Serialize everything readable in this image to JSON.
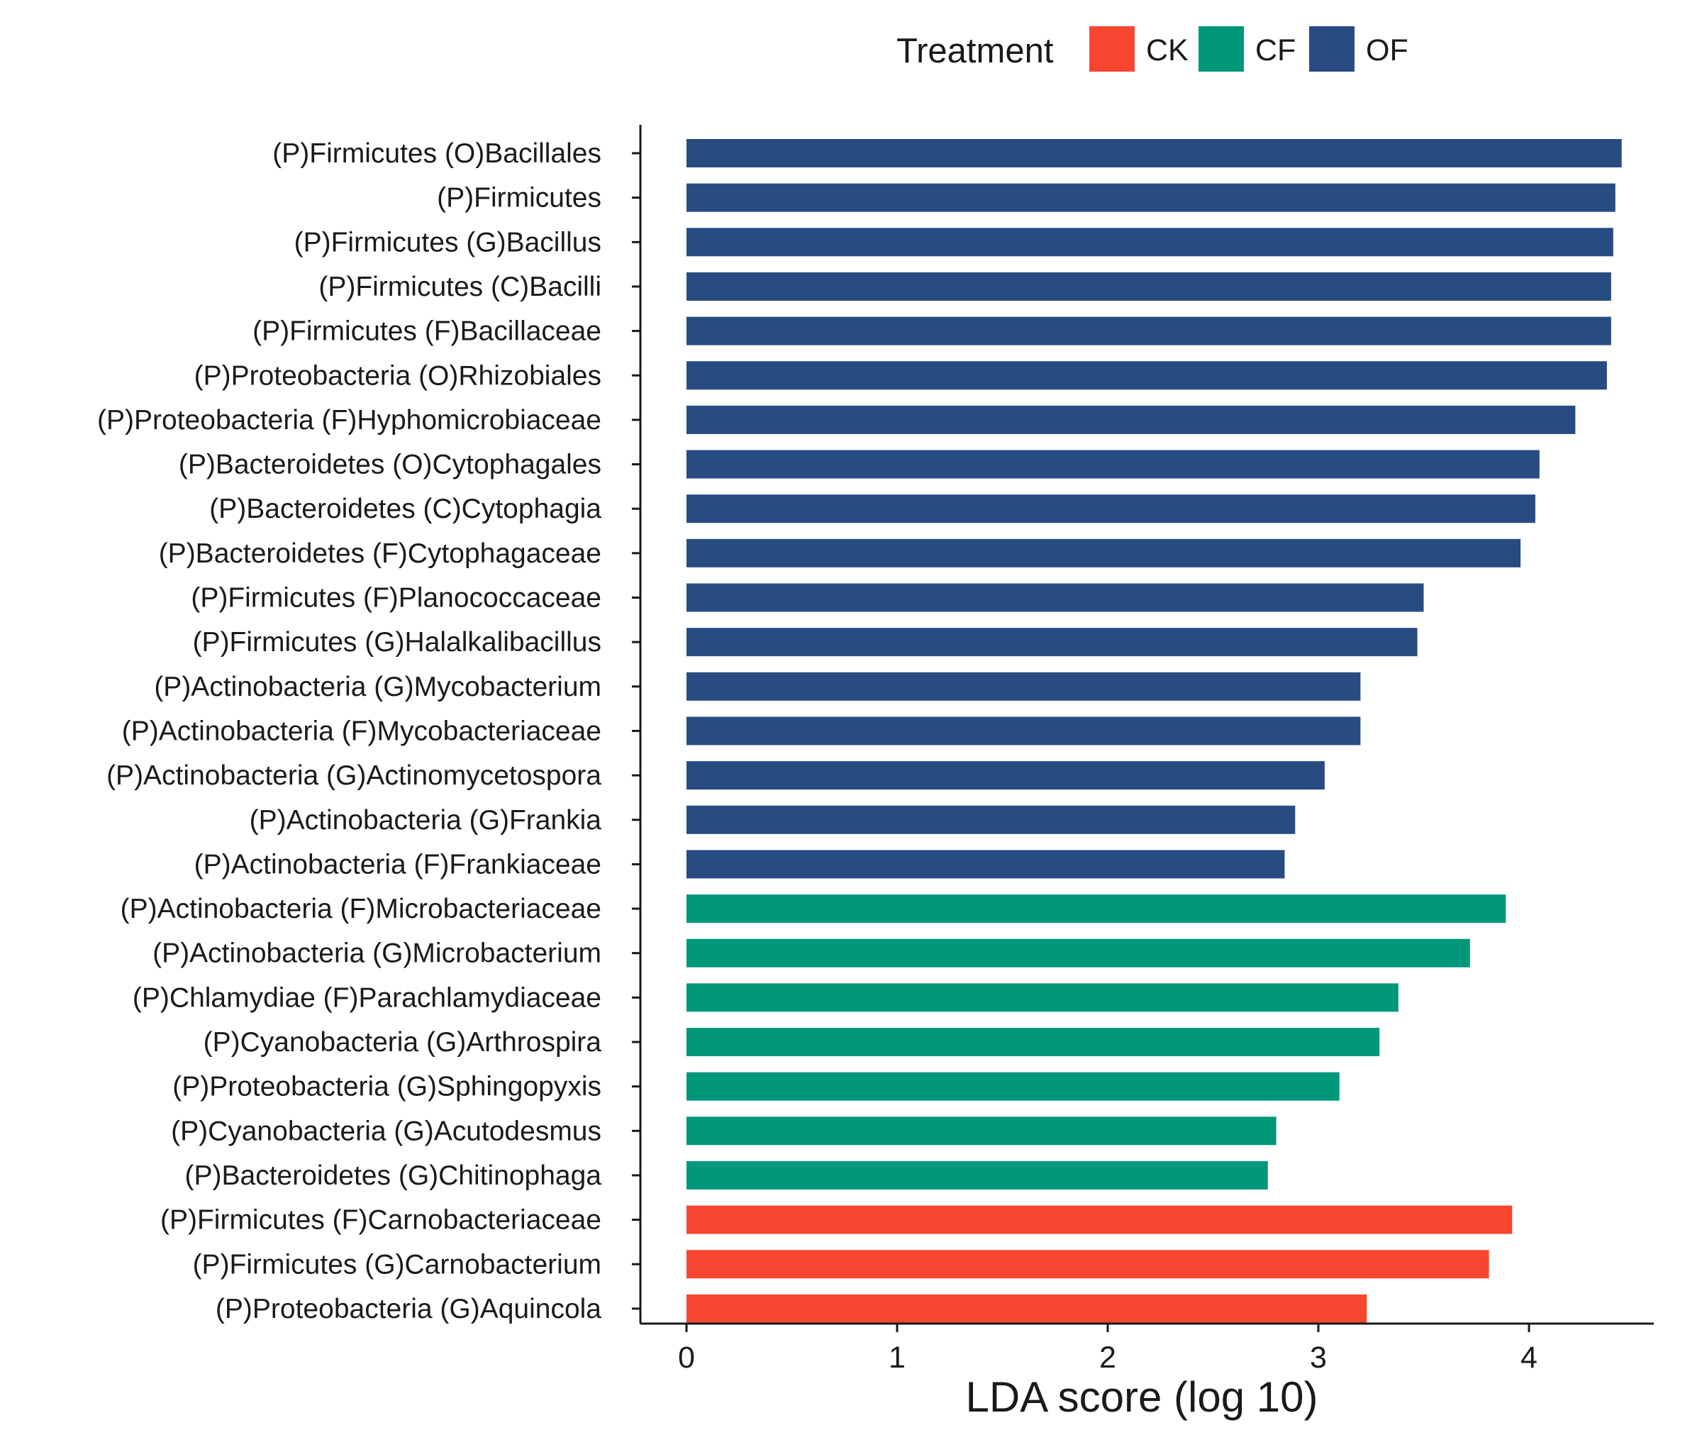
{
  "chart_data": {
    "type": "bar",
    "orientation": "horizontal",
    "xlabel": "LDA score (log 10)",
    "ylabel": "",
    "xlim": [
      0,
      4.6
    ],
    "xticks": [
      0,
      1,
      2,
      3,
      4
    ],
    "legend": {
      "title": "Treatment",
      "position": "top",
      "entries": [
        {
          "name": "CK",
          "color": "#F8452F"
        },
        {
          "name": "CF",
          "color": "#00977A"
        },
        {
          "name": "OF",
          "color": "#284B82"
        }
      ]
    },
    "categories": [
      "(P)Firmicutes (O)Bacillales",
      "(P)Firmicutes",
      "(P)Firmicutes (G)Bacillus",
      "(P)Firmicutes (C)Bacilli",
      "(P)Firmicutes (F)Bacillaceae",
      "(P)Proteobacteria (O)Rhizobiales",
      "(P)Proteobacteria (F)Hyphomicrobiaceae",
      "(P)Bacteroidetes (O)Cytophagales",
      "(P)Bacteroidetes (C)Cytophagia",
      "(P)Bacteroidetes (F)Cytophagaceae",
      "(P)Firmicutes (F)Planococcaceae",
      "(P)Firmicutes (G)Halalkalibacillus",
      "(P)Actinobacteria (G)Mycobacterium",
      "(P)Actinobacteria (F)Mycobacteriaceae",
      "(P)Actinobacteria (G)Actinomycetospora",
      "(P)Actinobacteria (G)Frankia",
      "(P)Actinobacteria (F)Frankiaceae",
      "(P)Actinobacteria (F)Microbacteriaceae",
      "(P)Actinobacteria (G)Microbacterium",
      "(P)Chlamydiae (F)Parachlamydiaceae",
      "(P)Cyanobacteria (G)Arthrospira",
      "(P)Proteobacteria (G)Sphingopyxis",
      "(P)Cyanobacteria (G)Acutodesmus",
      "(P)Bacteroidetes (G)Chitinophaga",
      "(P)Firmicutes (F)Carnobacteriaceae",
      "(P)Firmicutes (G)Carnobacterium",
      "(P)Proteobacteria (G)Aquincola"
    ],
    "values": [
      4.44,
      4.41,
      4.4,
      4.39,
      4.39,
      4.37,
      4.22,
      4.05,
      4.03,
      3.96,
      3.5,
      3.47,
      3.2,
      3.2,
      3.03,
      2.89,
      2.84,
      3.89,
      3.72,
      3.38,
      3.29,
      3.1,
      2.8,
      2.76,
      3.92,
      3.81,
      3.23
    ],
    "groups": [
      "OF",
      "OF",
      "OF",
      "OF",
      "OF",
      "OF",
      "OF",
      "OF",
      "OF",
      "OF",
      "OF",
      "OF",
      "OF",
      "OF",
      "OF",
      "OF",
      "OF",
      "CF",
      "CF",
      "CF",
      "CF",
      "CF",
      "CF",
      "CF",
      "CK",
      "CK",
      "CK"
    ]
  }
}
